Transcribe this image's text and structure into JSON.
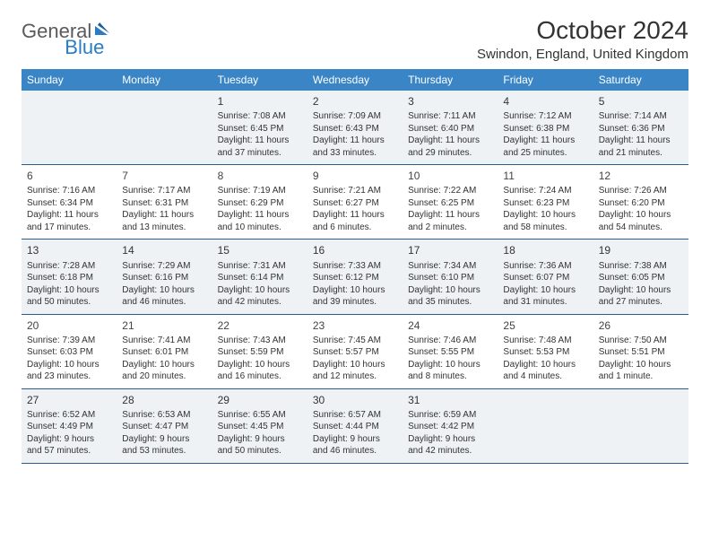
{
  "logo": {
    "general": "General",
    "blue": "Blue"
  },
  "title": "October 2024",
  "location": "Swindon, England, United Kingdom",
  "colors": {
    "header_bg": "#3a85c6",
    "header_text": "#ffffff",
    "row_border": "#2a5d8f",
    "shaded_bg": "#eef2f5",
    "text": "#333333",
    "logo_gray": "#5a5a5a",
    "logo_blue": "#2a7dc4"
  },
  "dow": [
    "Sunday",
    "Monday",
    "Tuesday",
    "Wednesday",
    "Thursday",
    "Friday",
    "Saturday"
  ],
  "weeks": [
    [
      null,
      null,
      {
        "n": "1",
        "sr": "7:08 AM",
        "ss": "6:45 PM",
        "dl": "11 hours and 37 minutes."
      },
      {
        "n": "2",
        "sr": "7:09 AM",
        "ss": "6:43 PM",
        "dl": "11 hours and 33 minutes."
      },
      {
        "n": "3",
        "sr": "7:11 AM",
        "ss": "6:40 PM",
        "dl": "11 hours and 29 minutes."
      },
      {
        "n": "4",
        "sr": "7:12 AM",
        "ss": "6:38 PM",
        "dl": "11 hours and 25 minutes."
      },
      {
        "n": "5",
        "sr": "7:14 AM",
        "ss": "6:36 PM",
        "dl": "11 hours and 21 minutes."
      }
    ],
    [
      {
        "n": "6",
        "sr": "7:16 AM",
        "ss": "6:34 PM",
        "dl": "11 hours and 17 minutes."
      },
      {
        "n": "7",
        "sr": "7:17 AM",
        "ss": "6:31 PM",
        "dl": "11 hours and 13 minutes."
      },
      {
        "n": "8",
        "sr": "7:19 AM",
        "ss": "6:29 PM",
        "dl": "11 hours and 10 minutes."
      },
      {
        "n": "9",
        "sr": "7:21 AM",
        "ss": "6:27 PM",
        "dl": "11 hours and 6 minutes."
      },
      {
        "n": "10",
        "sr": "7:22 AM",
        "ss": "6:25 PM",
        "dl": "11 hours and 2 minutes."
      },
      {
        "n": "11",
        "sr": "7:24 AM",
        "ss": "6:23 PM",
        "dl": "10 hours and 58 minutes."
      },
      {
        "n": "12",
        "sr": "7:26 AM",
        "ss": "6:20 PM",
        "dl": "10 hours and 54 minutes."
      }
    ],
    [
      {
        "n": "13",
        "sr": "7:28 AM",
        "ss": "6:18 PM",
        "dl": "10 hours and 50 minutes."
      },
      {
        "n": "14",
        "sr": "7:29 AM",
        "ss": "6:16 PM",
        "dl": "10 hours and 46 minutes."
      },
      {
        "n": "15",
        "sr": "7:31 AM",
        "ss": "6:14 PM",
        "dl": "10 hours and 42 minutes."
      },
      {
        "n": "16",
        "sr": "7:33 AM",
        "ss": "6:12 PM",
        "dl": "10 hours and 39 minutes."
      },
      {
        "n": "17",
        "sr": "7:34 AM",
        "ss": "6:10 PM",
        "dl": "10 hours and 35 minutes."
      },
      {
        "n": "18",
        "sr": "7:36 AM",
        "ss": "6:07 PM",
        "dl": "10 hours and 31 minutes."
      },
      {
        "n": "19",
        "sr": "7:38 AM",
        "ss": "6:05 PM",
        "dl": "10 hours and 27 minutes."
      }
    ],
    [
      {
        "n": "20",
        "sr": "7:39 AM",
        "ss": "6:03 PM",
        "dl": "10 hours and 23 minutes."
      },
      {
        "n": "21",
        "sr": "7:41 AM",
        "ss": "6:01 PM",
        "dl": "10 hours and 20 minutes."
      },
      {
        "n": "22",
        "sr": "7:43 AM",
        "ss": "5:59 PM",
        "dl": "10 hours and 16 minutes."
      },
      {
        "n": "23",
        "sr": "7:45 AM",
        "ss": "5:57 PM",
        "dl": "10 hours and 12 minutes."
      },
      {
        "n": "24",
        "sr": "7:46 AM",
        "ss": "5:55 PM",
        "dl": "10 hours and 8 minutes."
      },
      {
        "n": "25",
        "sr": "7:48 AM",
        "ss": "5:53 PM",
        "dl": "10 hours and 4 minutes."
      },
      {
        "n": "26",
        "sr": "7:50 AM",
        "ss": "5:51 PM",
        "dl": "10 hours and 1 minute."
      }
    ],
    [
      {
        "n": "27",
        "sr": "6:52 AM",
        "ss": "4:49 PM",
        "dl": "9 hours and 57 minutes."
      },
      {
        "n": "28",
        "sr": "6:53 AM",
        "ss": "4:47 PM",
        "dl": "9 hours and 53 minutes."
      },
      {
        "n": "29",
        "sr": "6:55 AM",
        "ss": "4:45 PM",
        "dl": "9 hours and 50 minutes."
      },
      {
        "n": "30",
        "sr": "6:57 AM",
        "ss": "4:44 PM",
        "dl": "9 hours and 46 minutes."
      },
      {
        "n": "31",
        "sr": "6:59 AM",
        "ss": "4:42 PM",
        "dl": "9 hours and 42 minutes."
      },
      null,
      null
    ]
  ],
  "shaded_rows": [
    0,
    2,
    4
  ],
  "labels": {
    "sunrise": "Sunrise: ",
    "sunset": "Sunset: ",
    "daylight": "Daylight: "
  }
}
